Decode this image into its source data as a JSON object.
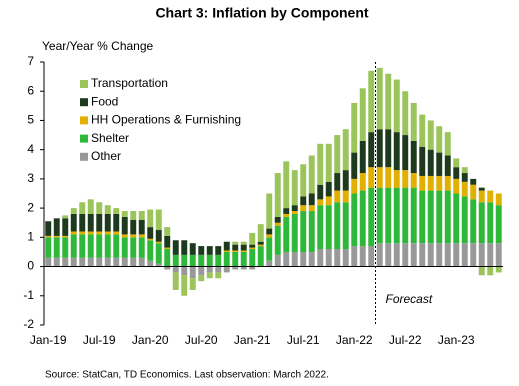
{
  "chart_data": {
    "type": "stacked_bar",
    "title": "Chart 3: Inflation by Component",
    "y_label": "Year/Year % Change",
    "source": "Source: StatCan, TD Economics.  Last observation: March 2022.",
    "categories": [
      "Jan-19",
      null,
      null,
      null,
      null,
      null,
      "Jul-19",
      null,
      null,
      null,
      null,
      null,
      "Jan-20",
      null,
      null,
      null,
      null,
      null,
      "Jul-20",
      null,
      null,
      null,
      null,
      null,
      "Jan-21",
      null,
      null,
      null,
      null,
      null,
      "Jul-21",
      null,
      null,
      null,
      null,
      null,
      "Jan-22",
      null,
      null,
      null,
      null,
      null,
      "Jul-22",
      null,
      null,
      null,
      null,
      null,
      "Jan-23",
      null,
      null,
      null,
      null,
      null
    ],
    "series": [
      {
        "name": "Transportation",
        "color": "#9bc45a",
        "values": [
          0.0,
          0.0,
          0.1,
          0.2,
          0.4,
          0.5,
          0.4,
          0.3,
          0.2,
          0.2,
          0.3,
          0.3,
          0.6,
          0.7,
          0.3,
          -0.6,
          -0.7,
          -0.4,
          -0.2,
          -0.2,
          -0.2,
          0.0,
          0.1,
          0.1,
          0.4,
          0.6,
          1.2,
          1.5,
          1.6,
          1.2,
          1.1,
          1.3,
          1.4,
          1.3,
          1.3,
          1.4,
          1.7,
          1.8,
          2.1,
          2.1,
          1.9,
          1.8,
          1.5,
          1.3,
          1.1,
          1.0,
          0.9,
          0.8,
          0.3,
          0.2,
          0.0,
          -0.3,
          -0.3,
          -0.2
        ]
      },
      {
        "name": "Food",
        "color": "#1e3a1e",
        "values": [
          0.5,
          0.6,
          0.6,
          0.6,
          0.6,
          0.6,
          0.6,
          0.6,
          0.6,
          0.6,
          0.5,
          0.5,
          0.4,
          0.4,
          0.4,
          0.5,
          0.5,
          0.4,
          0.3,
          0.3,
          0.3,
          0.3,
          0.2,
          0.2,
          0.1,
          0.1,
          0.2,
          0.2,
          0.2,
          0.2,
          0.3,
          0.4,
          0.5,
          0.5,
          0.6,
          0.7,
          0.9,
          1.1,
          1.2,
          1.3,
          1.3,
          1.3,
          1.2,
          1.1,
          1.0,
          0.9,
          0.8,
          0.7,
          0.4,
          0.3,
          0.2,
          0.1,
          0.0,
          0.0
        ]
      },
      {
        "name": "HH Operations & Furnishing",
        "color": "#e2b000",
        "values": [
          0.05,
          0.05,
          0.05,
          0.1,
          0.1,
          0.1,
          0.1,
          0.1,
          0.1,
          0.1,
          0.1,
          0.1,
          0.05,
          0.05,
          0.05,
          0.0,
          0.0,
          0.0,
          0.0,
          0.0,
          0.0,
          0.05,
          0.05,
          0.05,
          0.05,
          0.05,
          0.1,
          0.1,
          0.1,
          0.1,
          0.2,
          0.2,
          0.2,
          0.3,
          0.4,
          0.4,
          0.5,
          0.6,
          0.7,
          0.7,
          0.7,
          0.6,
          0.6,
          0.5,
          0.5,
          0.5,
          0.5,
          0.5,
          0.5,
          0.5,
          0.5,
          0.4,
          0.4,
          0.4
        ]
      },
      {
        "name": "Shelter",
        "color": "#2eb83a",
        "values": [
          0.7,
          0.7,
          0.7,
          0.8,
          0.8,
          0.8,
          0.8,
          0.8,
          0.8,
          0.7,
          0.7,
          0.7,
          0.7,
          0.7,
          0.6,
          0.4,
          0.4,
          0.4,
          0.4,
          0.4,
          0.4,
          0.5,
          0.5,
          0.5,
          0.6,
          0.7,
          0.8,
          1.0,
          1.2,
          1.3,
          1.4,
          1.4,
          1.5,
          1.5,
          1.6,
          1.6,
          1.8,
          1.9,
          2.0,
          1.9,
          1.9,
          1.9,
          1.9,
          1.9,
          1.8,
          1.8,
          1.8,
          1.8,
          1.7,
          1.6,
          1.5,
          1.4,
          1.4,
          1.3
        ]
      },
      {
        "name": "Other",
        "color": "#999999",
        "values": [
          0.3,
          0.3,
          0.3,
          0.3,
          0.3,
          0.3,
          0.3,
          0.3,
          0.3,
          0.3,
          0.3,
          0.3,
          0.2,
          0.1,
          -0.1,
          -0.2,
          -0.3,
          -0.4,
          -0.3,
          -0.2,
          -0.2,
          -0.2,
          -0.1,
          -0.1,
          -0.1,
          0.0,
          0.2,
          0.4,
          0.5,
          0.5,
          0.5,
          0.5,
          0.6,
          0.6,
          0.6,
          0.6,
          0.7,
          0.7,
          0.7,
          0.8,
          0.8,
          0.8,
          0.8,
          0.8,
          0.8,
          0.8,
          0.8,
          0.8,
          0.8,
          0.8,
          0.8,
          0.8,
          0.8,
          0.8
        ]
      }
    ],
    "ylim": [
      -2,
      7
    ],
    "yticks": [
      -2,
      -1,
      0,
      1,
      2,
      3,
      4,
      5,
      6,
      7
    ],
    "annotations": [
      {
        "text": "Forecast",
        "x": 38.5
      }
    ]
  }
}
